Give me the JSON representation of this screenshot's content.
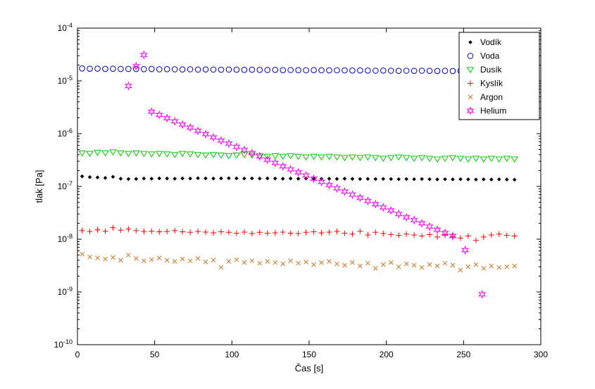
{
  "figure": {
    "background": "#ffffff",
    "axes_color": "#000000"
  },
  "chart_data": {
    "type": "scatter",
    "title": "",
    "xlabel": "Čas [s]",
    "ylabel": "tlak [Pa]",
    "xlim": [
      0,
      300
    ],
    "xticks": [
      0,
      50,
      100,
      150,
      200,
      250,
      300
    ],
    "y_scale": "log",
    "ylim_exp": [
      -10,
      -4
    ],
    "grid": false,
    "legend_position": "top-right",
    "x_common": [
      3,
      8,
      13,
      18,
      23,
      28,
      33,
      38,
      43,
      48,
      53,
      58,
      63,
      68,
      73,
      78,
      83,
      88,
      93,
      98,
      103,
      108,
      113,
      118,
      123,
      128,
      133,
      138,
      143,
      148,
      153,
      158,
      163,
      168,
      173,
      178,
      183,
      188,
      193,
      198,
      203,
      208,
      213,
      218,
      223,
      228,
      233,
      238,
      243,
      248,
      253,
      258,
      263,
      268,
      273,
      278,
      283
    ],
    "series": [
      {
        "id": "vodik",
        "name": "Vodík",
        "marker": "diamond",
        "color": "#000000",
        "y": [
          1.55e-07,
          1.5e-07,
          1.48e-07,
          1.45e-07,
          1.52e-07,
          1.4e-07,
          1.38e-07,
          1.39e-07,
          1.41e-07,
          1.4e-07,
          1.42e-07,
          1.41e-07,
          1.4e-07,
          1.42e-07,
          1.41e-07,
          1.43e-07,
          1.42e-07,
          1.41e-07,
          1.42e-07,
          1.43e-07,
          1.42e-07,
          1.41e-07,
          1.42e-07,
          1.41e-07,
          1.42e-07,
          1.41e-07,
          1.4e-07,
          1.41e-07,
          1.4e-07,
          1.41e-07,
          1.4e-07,
          1.39e-07,
          1.4e-07,
          1.39e-07,
          1.4e-07,
          1.39e-07,
          1.38e-07,
          1.39e-07,
          1.38e-07,
          1.39e-07,
          1.38e-07,
          1.37e-07,
          1.38e-07,
          1.37e-07,
          1.38e-07,
          1.37e-07,
          1.36e-07,
          1.37e-07,
          1.36e-07,
          1.37e-07,
          1.36e-07,
          1.35e-07,
          1.36e-07,
          1.35e-07,
          1.36e-07,
          1.35e-07,
          1.34e-07
        ]
      },
      {
        "id": "voda",
        "name": "Voda",
        "marker": "circle",
        "color": "#0000CC",
        "y": [
          1.72e-05,
          1.7e-05,
          1.71e-05,
          1.69e-05,
          1.7e-05,
          1.68e-05,
          1.69e-05,
          1.68e-05,
          1.67e-05,
          1.68e-05,
          1.66e-05,
          1.67e-05,
          1.66e-05,
          1.65e-05,
          1.66e-05,
          1.64e-05,
          1.65e-05,
          1.64e-05,
          1.63e-05,
          1.64e-05,
          1.63e-05,
          1.62e-05,
          1.63e-05,
          1.62e-05,
          1.61e-05,
          1.62e-05,
          1.6e-05,
          1.61e-05,
          1.6e-05,
          1.59e-05,
          1.6e-05,
          1.59e-05,
          1.58e-05,
          1.59e-05,
          1.58e-05,
          1.57e-05,
          1.58e-05,
          1.57e-05,
          1.56e-05,
          1.57e-05,
          1.56e-05,
          1.55e-05,
          1.56e-05,
          1.55e-05,
          1.56e-05,
          1.55e-05,
          1.54e-05,
          1.55e-05,
          1.54e-05,
          1.55e-05,
          1.54e-05,
          1.55e-05,
          1.54e-05,
          1.55e-05,
          1.56e-05,
          1.55e-05,
          1.56e-05
        ]
      },
      {
        "id": "dusik",
        "name": "Dusík",
        "marker": "triangle-down",
        "color": "#00CC00",
        "y": [
          4.3e-07,
          4.2e-07,
          4.4e-07,
          4.3e-07,
          4.5e-07,
          4.3e-07,
          4.2e-07,
          4.3e-07,
          4.2e-07,
          4.1e-07,
          4.2e-07,
          4.1e-07,
          4e-07,
          4.2e-07,
          4.1e-07,
          4e-07,
          3.9e-07,
          4e-07,
          3.9e-07,
          3.8e-07,
          3.9e-07,
          4e-07,
          3.9e-07,
          3.8e-07,
          3.7e-07,
          3.8e-07,
          3.7e-07,
          3.8e-07,
          3.7e-07,
          3.6e-07,
          3.7e-07,
          3.6e-07,
          3.7e-07,
          3.6e-07,
          3.5e-07,
          3.6e-07,
          3.5e-07,
          3.6e-07,
          3.5e-07,
          3.4e-07,
          3.5e-07,
          3.6e-07,
          3.5e-07,
          3.4e-07,
          3.5e-07,
          3.4e-07,
          3.3e-07,
          3.4e-07,
          3.5e-07,
          3.4e-07,
          3.3e-07,
          3.4e-07,
          3.3e-07,
          3.4e-07,
          3.3e-07,
          3.4e-07,
          3.3e-07
        ]
      },
      {
        "id": "kyslik",
        "name": "Kyslík",
        "marker": "plus",
        "color": "#FF0000",
        "y": [
          1.45e-08,
          1.4e-08,
          1.5e-08,
          1.42e-08,
          1.65e-08,
          1.48e-08,
          1.55e-08,
          1.45e-08,
          1.4e-08,
          1.42e-08,
          1.38e-08,
          1.4e-08,
          1.45e-08,
          1.38e-08,
          1.35e-08,
          1.4e-08,
          1.36e-08,
          1.32e-08,
          1.38e-08,
          1.35e-08,
          1.3e-08,
          1.36e-08,
          1.28e-08,
          1.35e-08,
          1.3e-08,
          1.32e-08,
          1.36e-08,
          1.3e-08,
          1.28e-08,
          1.35e-08,
          1.38e-08,
          1.32e-08,
          1.36e-08,
          1.4e-08,
          1.3e-08,
          1.25e-08,
          1.42e-08,
          1.2e-08,
          1.35e-08,
          1.28e-08,
          1.22e-08,
          1.18e-08,
          1.25e-08,
          1.2e-08,
          1.15e-08,
          1.22e-08,
          1.1e-08,
          1.18e-08,
          1.12e-08,
          1.05e-08,
          1.15e-08,
          9.5e-09,
          1.1e-08,
          1.2e-08,
          1.25e-08,
          1.18e-08,
          1.15e-08
        ]
      },
      {
        "id": "argon",
        "name": "Argon",
        "marker": "x",
        "color": "#CC7722",
        "y": [
          5.2e-09,
          4.6e-09,
          4.4e-09,
          4.2e-09,
          4.5e-09,
          4e-09,
          5e-09,
          4.3e-09,
          3.9e-09,
          4.1e-09,
          4.4e-09,
          4e-09,
          3.8e-09,
          4.2e-09,
          3.9e-09,
          4.3e-09,
          3.7e-09,
          4e-09,
          2.9e-09,
          3.8e-09,
          4.1e-09,
          3.6e-09,
          3.9e-09,
          3.5e-09,
          3.8e-09,
          3.6e-09,
          3.4e-09,
          3.9e-09,
          3.5e-09,
          3.7e-09,
          3.3e-09,
          3.6e-09,
          3.8e-09,
          3.4e-09,
          3.2e-09,
          3.6e-09,
          3.1e-09,
          3.5e-09,
          2.8e-09,
          3.3e-09,
          3.6e-09,
          3e-09,
          3.4e-09,
          3.2e-09,
          2.9e-09,
          3.3e-09,
          3.1e-09,
          3.5e-09,
          3.2e-09,
          2.6e-09,
          3e-09,
          3.3e-09,
          2.8e-09,
          3.1e-09,
          2.9e-09,
          3e-09,
          3.1e-09
        ]
      },
      {
        "id": "helium",
        "name": "Helium",
        "marker": "hexagram",
        "color": "#FF00FF",
        "x": [
          33,
          38,
          43,
          48,
          53,
          58,
          63,
          68,
          73,
          78,
          83,
          88,
          93,
          98,
          103,
          108,
          113,
          118,
          123,
          128,
          133,
          138,
          143,
          148,
          153,
          158,
          163,
          168,
          173,
          178,
          183,
          188,
          193,
          198,
          203,
          208,
          213,
          218,
          223,
          228,
          233,
          238,
          243,
          251,
          262
        ],
        "y": [
          8e-06,
          1.9e-05,
          3.1e-05,
          2.6e-06,
          2.26e-06,
          1.97e-06,
          1.71e-06,
          1.49e-06,
          1.3e-06,
          1.13e-06,
          9.8e-07,
          8.5e-07,
          7.4e-07,
          6.5e-07,
          5.6e-07,
          4.9e-07,
          4.3e-07,
          3.7e-07,
          3.2e-07,
          2.8e-07,
          2.4e-07,
          2.1e-07,
          1.85e-07,
          1.61e-07,
          1.4e-07,
          1.22e-07,
          1.06e-07,
          9.2e-08,
          8e-08,
          7e-08,
          6.1e-08,
          5.3e-08,
          4.6e-08,
          4e-08,
          3.5e-08,
          3e-08,
          2.6e-08,
          2.3e-08,
          2e-08,
          1.73e-08,
          1.51e-08,
          1.31e-08,
          1.15e-08,
          6.2e-09,
          9e-10
        ]
      }
    ]
  }
}
